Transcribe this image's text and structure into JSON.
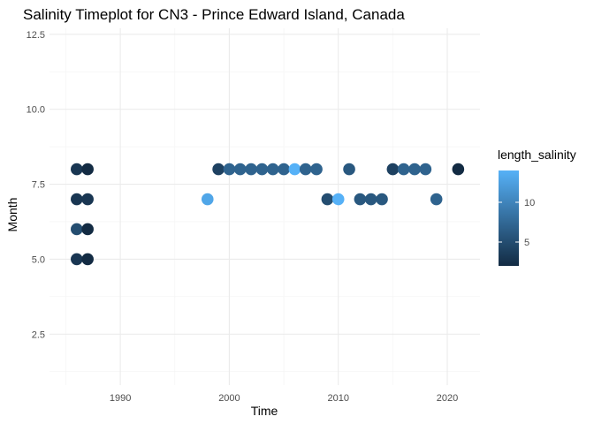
{
  "chart_data": {
    "type": "scatter",
    "title": "Salinity Timeplot for CN3 - Prince Edward Island, Canada",
    "xlabel": "Time",
    "ylabel": "Month",
    "xlim": [
      1983.5,
      2023.0
    ],
    "ylim": [
      0.8,
      12.7
    ],
    "x_ticks": [
      1990,
      2000,
      2010,
      2020
    ],
    "y_ticks": [
      2.5,
      5.0,
      7.5,
      10.0,
      12.5
    ],
    "y_tick_labels": [
      "2.5",
      "5.0",
      "7.5",
      "10.0",
      "12.5"
    ],
    "grid": true,
    "legend": {
      "title": "length_salinity",
      "placement": "right",
      "min": 2,
      "max": 14,
      "ticks": [
        5,
        10
      ],
      "color_low": "#132B43",
      "color_high": "#56B1F7"
    },
    "points": [
      {
        "x": 1986,
        "y": 8,
        "length_salinity": 3
      },
      {
        "x": 1986,
        "y": 7,
        "length_salinity": 3
      },
      {
        "x": 1986,
        "y": 6,
        "length_salinity": 5
      },
      {
        "x": 1986,
        "y": 5,
        "length_salinity": 3
      },
      {
        "x": 1987,
        "y": 8,
        "length_salinity": 2
      },
      {
        "x": 1987,
        "y": 7,
        "length_salinity": 3
      },
      {
        "x": 1987,
        "y": 6,
        "length_salinity": 2
      },
      {
        "x": 1987,
        "y": 5,
        "length_salinity": 2
      },
      {
        "x": 1998,
        "y": 7,
        "length_salinity": 13
      },
      {
        "x": 1999,
        "y": 8,
        "length_salinity": 4
      },
      {
        "x": 2000,
        "y": 8,
        "length_salinity": 7
      },
      {
        "x": 2001,
        "y": 8,
        "length_salinity": 7
      },
      {
        "x": 2002,
        "y": 8,
        "length_salinity": 7
      },
      {
        "x": 2003,
        "y": 8,
        "length_salinity": 7
      },
      {
        "x": 2004,
        "y": 8,
        "length_salinity": 7
      },
      {
        "x": 2005,
        "y": 8,
        "length_salinity": 7
      },
      {
        "x": 2006,
        "y": 8,
        "length_salinity": 14
      },
      {
        "x": 2007,
        "y": 8,
        "length_salinity": 7
      },
      {
        "x": 2008,
        "y": 8,
        "length_salinity": 7
      },
      {
        "x": 2009,
        "y": 7,
        "length_salinity": 5
      },
      {
        "x": 2010,
        "y": 7,
        "length_salinity": 14
      },
      {
        "x": 2011,
        "y": 8,
        "length_salinity": 6
      },
      {
        "x": 2012,
        "y": 7,
        "length_salinity": 6
      },
      {
        "x": 2013,
        "y": 7,
        "length_salinity": 6
      },
      {
        "x": 2014,
        "y": 7,
        "length_salinity": 6
      },
      {
        "x": 2015,
        "y": 8,
        "length_salinity": 4
      },
      {
        "x": 2016,
        "y": 8,
        "length_salinity": 7
      },
      {
        "x": 2017,
        "y": 8,
        "length_salinity": 7
      },
      {
        "x": 2018,
        "y": 8,
        "length_salinity": 7
      },
      {
        "x": 2019,
        "y": 7,
        "length_salinity": 7
      },
      {
        "x": 2021,
        "y": 8,
        "length_salinity": 2
      }
    ]
  }
}
